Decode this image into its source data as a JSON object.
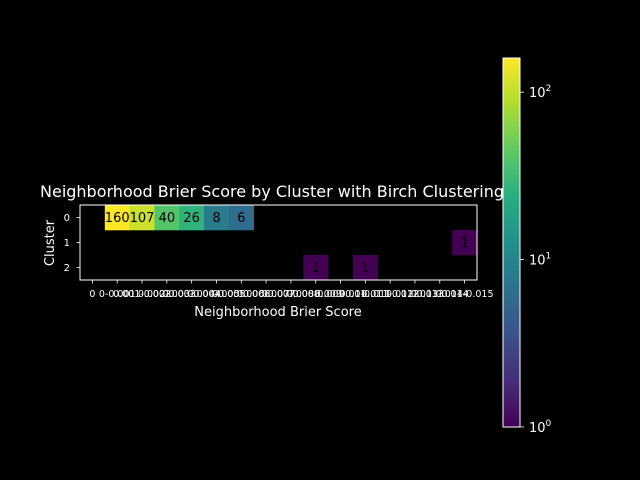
{
  "chart_data": {
    "type": "heatmap",
    "title": "Neighborhood Brier Score by Cluster with Birch Clustering",
    "xlabel": "Neighborhood Brier Score",
    "ylabel": "Cluster",
    "x_categories": [
      "0",
      "0-0.001",
      "0.001-0.002",
      "0.002-0.003",
      "0.003-0.004",
      "0.004-0.005",
      "0.005-0.006",
      "0.006-0.007",
      "0.007-0.008",
      "0.008-0.009",
      "0.009-0.01",
      "0.01-0.011",
      "0.011-0.012",
      "0.012-0.013",
      "0.013-0.014",
      "0.014-0.015"
    ],
    "y_categories": [
      "0",
      "1",
      "2"
    ],
    "cells": [
      {
        "row": 0,
        "col": 1,
        "value": 160
      },
      {
        "row": 0,
        "col": 2,
        "value": 107
      },
      {
        "row": 0,
        "col": 3,
        "value": 40
      },
      {
        "row": 0,
        "col": 4,
        "value": 26
      },
      {
        "row": 0,
        "col": 5,
        "value": 8
      },
      {
        "row": 0,
        "col": 6,
        "value": 6
      },
      {
        "row": 1,
        "col": 15,
        "value": 1
      },
      {
        "row": 2,
        "col": 9,
        "value": 1
      },
      {
        "row": 2,
        "col": 11,
        "value": 1
      }
    ],
    "colorbar": {
      "scale": "log",
      "colormap": "viridis",
      "range": [
        1,
        160
      ],
      "ticks": [
        {
          "value": 100,
          "label": "10",
          "exp": "2"
        },
        {
          "value": 10,
          "label": "10",
          "exp": "1"
        },
        {
          "value": 1,
          "label": "10",
          "exp": "0"
        }
      ]
    },
    "grid": false
  }
}
